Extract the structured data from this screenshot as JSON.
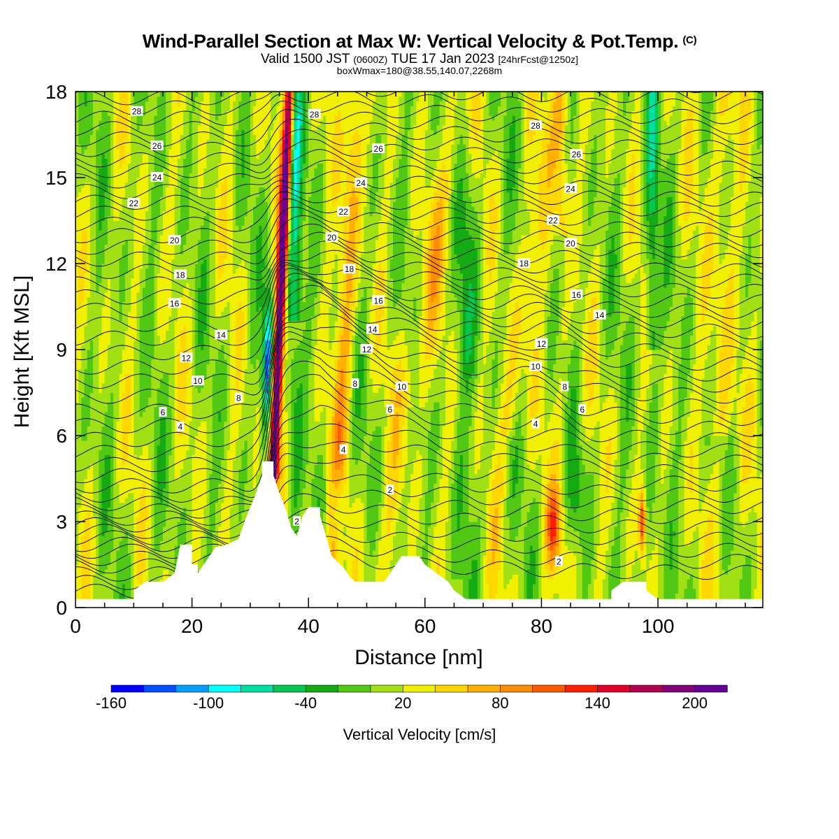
{
  "header": {
    "title": "Wind-Parallel Section at Max W: Vertical Velocity & Pot.Temp.",
    "copyright": "(C)",
    "valid_a": "Valid 1500 JST ",
    "valid_zulu": "(0600Z)",
    "valid_b": " TUE 17 Jan 2023 ",
    "forecast": "[24hrFcst@1250z]",
    "box": "boxWmax=180@38.55,140.07,2268m"
  },
  "chart_data": {
    "type": "heatmap",
    "xlabel": "Distance [nm]",
    "ylabel": "Height [Kft MSL]",
    "xlim": [
      0,
      118
    ],
    "ylim": [
      0,
      18
    ],
    "x_ticks": [
      0,
      20,
      40,
      60,
      80,
      100
    ],
    "y_ticks": [
      0,
      3,
      6,
      9,
      12,
      15,
      18
    ],
    "colorbar": {
      "label": "Vertical Velocity [cm/s]",
      "levels": [
        -160,
        -140,
        -120,
        -100,
        -80,
        -60,
        -40,
        -20,
        0,
        20,
        40,
        60,
        80,
        100,
        120,
        140,
        160,
        180,
        200,
        220
      ],
      "tick_labels": [
        "-160",
        "-100",
        "-40",
        "20",
        "80",
        "140",
        "200"
      ],
      "tick_values": [
        -160,
        -100,
        -40,
        20,
        80,
        140,
        200
      ],
      "colors": [
        "#0000ff",
        "#0050ff",
        "#00a0ff",
        "#00ffff",
        "#00e0a0",
        "#00c850",
        "#14aa14",
        "#50c814",
        "#a0e014",
        "#f0f000",
        "#ffd700",
        "#ffb000",
        "#ff8c00",
        "#ff5a00",
        "#ff1e00",
        "#e00028",
        "#b40050",
        "#820078",
        "#640096"
      ]
    },
    "terrain_kft": [
      [
        0,
        0.3
      ],
      [
        10,
        0.3
      ],
      [
        10,
        0.6
      ],
      [
        12,
        0.9
      ],
      [
        15,
        0.9
      ],
      [
        17,
        1.2
      ],
      [
        18,
        2.2
      ],
      [
        20,
        2.2
      ],
      [
        20,
        1.5
      ],
      [
        21,
        1.5
      ],
      [
        21,
        1.2
      ],
      [
        22,
        1.5
      ],
      [
        23,
        1.8
      ],
      [
        24,
        2.1
      ],
      [
        26,
        2.2
      ],
      [
        28,
        2.4
      ],
      [
        29,
        3.0
      ],
      [
        30,
        3.5
      ],
      [
        31,
        4.0
      ],
      [
        32,
        4.6
      ],
      [
        32,
        5.1
      ],
      [
        34,
        5.1
      ],
      [
        34,
        4.6
      ],
      [
        35,
        4.0
      ],
      [
        36,
        3.5
      ],
      [
        37,
        2.8
      ],
      [
        38,
        2.5
      ],
      [
        39,
        3.2
      ],
      [
        40,
        3.5
      ],
      [
        42,
        3.5
      ],
      [
        42,
        3.2
      ],
      [
        43,
        2.5
      ],
      [
        44,
        1.8
      ],
      [
        46,
        1.4
      ],
      [
        47,
        1.1
      ],
      [
        48,
        0.9
      ],
      [
        50,
        0.9
      ],
      [
        51,
        0.9
      ],
      [
        53,
        0.9
      ],
      [
        54,
        1.2
      ],
      [
        55,
        1.5
      ],
      [
        56,
        1.8
      ],
      [
        59,
        1.8
      ],
      [
        60,
        1.5
      ],
      [
        62,
        1.2
      ],
      [
        64,
        0.9
      ],
      [
        65,
        0.6
      ],
      [
        67,
        0.3
      ],
      [
        92,
        0.3
      ],
      [
        92,
        0.6
      ],
      [
        94,
        0.9
      ],
      [
        98,
        0.9
      ],
      [
        98,
        0.6
      ],
      [
        100,
        0.3
      ],
      [
        118,
        0.3
      ]
    ],
    "theta_labels": [
      {
        "x": 10.5,
        "z": 17.3,
        "v": "28"
      },
      {
        "x": 41,
        "z": 17.2,
        "v": "28"
      },
      {
        "x": 79,
        "z": 16.8,
        "v": "28"
      },
      {
        "x": 14,
        "z": 16.1,
        "v": "26"
      },
      {
        "x": 52,
        "z": 16.0,
        "v": "26"
      },
      {
        "x": 86,
        "z": 15.8,
        "v": "26"
      },
      {
        "x": 14,
        "z": 15.0,
        "v": "24"
      },
      {
        "x": 49,
        "z": 14.8,
        "v": "24"
      },
      {
        "x": 85,
        "z": 14.6,
        "v": "24"
      },
      {
        "x": 10,
        "z": 14.1,
        "v": "22"
      },
      {
        "x": 46,
        "z": 13.8,
        "v": "22"
      },
      {
        "x": 82,
        "z": 13.5,
        "v": "22"
      },
      {
        "x": 17,
        "z": 12.8,
        "v": "20"
      },
      {
        "x": 44,
        "z": 12.9,
        "v": "20"
      },
      {
        "x": 85,
        "z": 12.7,
        "v": "20"
      },
      {
        "x": 18,
        "z": 11.6,
        "v": "18"
      },
      {
        "x": 47,
        "z": 11.8,
        "v": "18"
      },
      {
        "x": 77,
        "z": 12.0,
        "v": "18"
      },
      {
        "x": 17,
        "z": 10.6,
        "v": "16"
      },
      {
        "x": 52,
        "z": 10.7,
        "v": "16"
      },
      {
        "x": 86,
        "z": 10.9,
        "v": "16"
      },
      {
        "x": 25,
        "z": 9.5,
        "v": "14"
      },
      {
        "x": 51,
        "z": 9.7,
        "v": "14"
      },
      {
        "x": 90,
        "z": 10.2,
        "v": "14"
      },
      {
        "x": 19,
        "z": 8.7,
        "v": "12"
      },
      {
        "x": 50,
        "z": 9.0,
        "v": "12"
      },
      {
        "x": 80,
        "z": 9.2,
        "v": "12"
      },
      {
        "x": 21,
        "z": 7.9,
        "v": "10"
      },
      {
        "x": 56,
        "z": 7.7,
        "v": "10"
      },
      {
        "x": 79,
        "z": 8.4,
        "v": "10"
      },
      {
        "x": 28,
        "z": 7.3,
        "v": "8"
      },
      {
        "x": 48,
        "z": 7.8,
        "v": "8"
      },
      {
        "x": 84,
        "z": 7.7,
        "v": "8"
      },
      {
        "x": 15,
        "z": 6.8,
        "v": "6"
      },
      {
        "x": 54,
        "z": 6.9,
        "v": "6"
      },
      {
        "x": 87,
        "z": 6.9,
        "v": "6"
      },
      {
        "x": 18,
        "z": 6.3,
        "v": "4"
      },
      {
        "x": 46,
        "z": 5.5,
        "v": "4"
      },
      {
        "x": 79,
        "z": 6.4,
        "v": "4"
      },
      {
        "x": 54,
        "z": 4.1,
        "v": "2"
      },
      {
        "x": 38,
        "z": 3.0,
        "v": "2"
      },
      {
        "x": 83,
        "z": 1.6,
        "v": "2"
      }
    ]
  }
}
